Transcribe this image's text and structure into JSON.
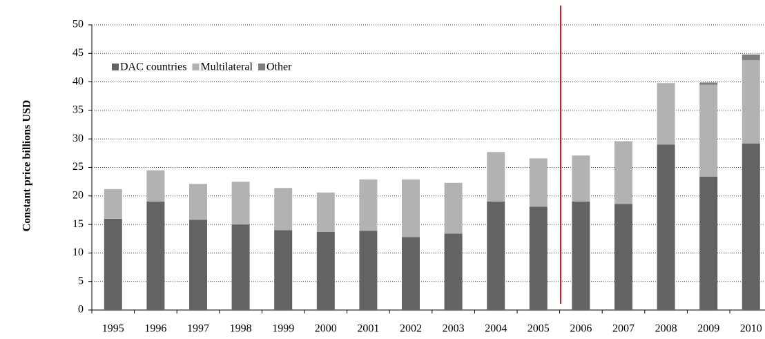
{
  "chart_data": {
    "type": "stacked_bar",
    "y_label": "Constant price billions USD",
    "categories": [
      "1995",
      "1996",
      "1997",
      "1998",
      "1999",
      "2000",
      "2001",
      "2002",
      "2003",
      "2004",
      "2005",
      "2006",
      "2007",
      "2008",
      "2009",
      "2010"
    ],
    "series": [
      {
        "name": "DAC countries",
        "color": "#636363",
        "values": [
          16,
          19,
          15.8,
          15,
          14,
          13.7,
          13.9,
          12.8,
          13.4,
          19,
          18.1,
          19,
          18.6,
          29,
          23.4,
          29.2
        ]
      },
      {
        "name": "Multilateral",
        "color": "#b2b2b2",
        "values": [
          5.2,
          5.5,
          6.3,
          7.5,
          7.4,
          6.9,
          9.0,
          10.1,
          8.9,
          8.7,
          8.5,
          8.1,
          11.0,
          10.8,
          16.1,
          14.6
        ]
      },
      {
        "name": "Other",
        "color": "#7f7f7f",
        "values": [
          0,
          0,
          0,
          0,
          0,
          0,
          0,
          0,
          0,
          0,
          0,
          0,
          0,
          0,
          0.4,
          1.0
        ]
      }
    ],
    "ylim": [
      0,
      50
    ],
    "yticks": [
      0,
      5,
      10,
      15,
      20,
      25,
      30,
      35,
      40,
      45,
      50
    ],
    "grid": true
  }
}
